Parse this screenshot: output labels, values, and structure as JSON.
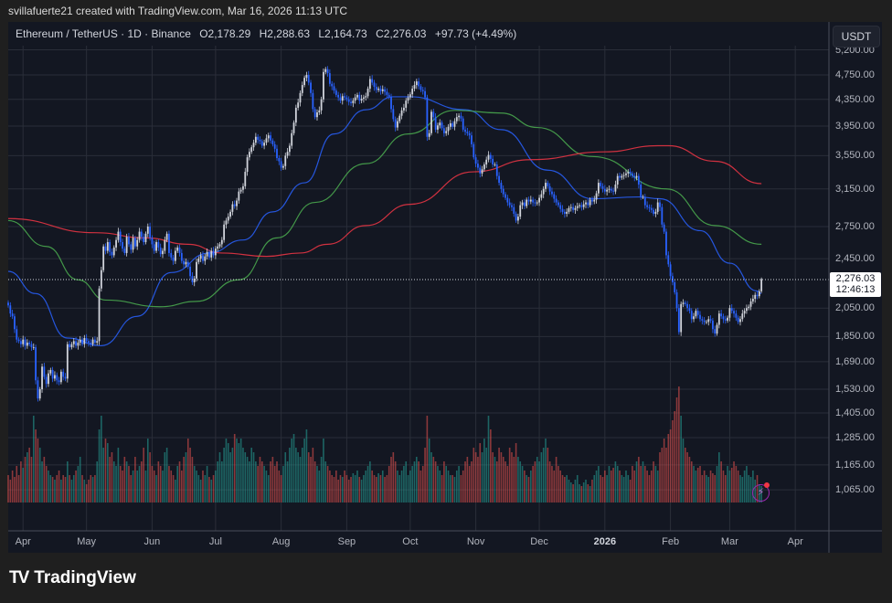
{
  "credit": "svillafuerte21 created with TradingView.com, Mar 16, 2026 11:13 UTC",
  "legend": {
    "symbol": "Ethereum / TetherUS · 1D · Binance",
    "open": "O2,178.29",
    "high": "H2,288.63",
    "low": "L2,164.73",
    "close": "C2,276.03",
    "change": "+97.73 (+4.49%)"
  },
  "currency_button": "USDT",
  "last_price": {
    "price": "2,276.03",
    "countdown": "12:46:13"
  },
  "logo": {
    "text": "TradingView",
    "mark": "TV"
  },
  "icons": {
    "alert": "lightning-bolt-icon"
  },
  "colors": {
    "background": "#131722",
    "up": "#d1d4dc",
    "down": "#2962ff",
    "volume_up": "#26a69a",
    "volume_down": "#ef5350",
    "ma_blue": "#2962ff",
    "ma_green": "#4caf50",
    "ma_red": "#f23645"
  },
  "chart_data": {
    "type": "candlestick",
    "title": "Ethereum / TetherUS · 1D · Binance",
    "y_scale": "log",
    "ylim": [
      1000,
      5300
    ],
    "grid": true,
    "y_ticks": [
      {
        "value": 5200,
        "label": "5,200.00"
      },
      {
        "value": 4750,
        "label": "4,750.00"
      },
      {
        "value": 4350,
        "label": "4,350.00"
      },
      {
        "value": 3950,
        "label": "3,950.00"
      },
      {
        "value": 3550,
        "label": "3,550.00"
      },
      {
        "value": 3150,
        "label": "3,150.00"
      },
      {
        "value": 2750,
        "label": "2,750.00"
      },
      {
        "value": 2450,
        "label": "2,450.00"
      },
      {
        "value": 2050,
        "label": "2,050.00"
      },
      {
        "value": 1850,
        "label": "1,850.00"
      },
      {
        "value": 1690,
        "label": "1,690.00"
      },
      {
        "value": 1530,
        "label": "1,530.00"
      },
      {
        "value": 1405,
        "label": "1,405.00"
      },
      {
        "value": 1285,
        "label": "1,285.00"
      },
      {
        "value": 1165,
        "label": "1,165.00"
      },
      {
        "value": 1065,
        "label": "1,065.00"
      }
    ],
    "x_ticks": [
      {
        "label": "Apr",
        "date": "2025-04-01"
      },
      {
        "label": "May",
        "date": "2025-05-01"
      },
      {
        "label": "Jun",
        "date": "2025-06-01"
      },
      {
        "label": "Jul",
        "date": "2025-07-01"
      },
      {
        "label": "Aug",
        "date": "2025-08-01"
      },
      {
        "label": "Sep",
        "date": "2025-09-01"
      },
      {
        "label": "Oct",
        "date": "2025-10-01"
      },
      {
        "label": "Nov",
        "date": "2025-11-01"
      },
      {
        "label": "Dec",
        "date": "2025-12-01"
      },
      {
        "label": "2026",
        "date": "2026-01-01"
      },
      {
        "label": "Feb",
        "date": "2026-02-01"
      },
      {
        "label": "Mar",
        "date": "2026-03-01"
      },
      {
        "label": "Apr",
        "date": "2026-04-01"
      }
    ],
    "first_candle_date": "2025-03-25",
    "last_candle": {
      "open": 2178.29,
      "high": 2288.63,
      "low": 2164.73,
      "close": 2276.03
    },
    "closes": [
      2070,
      2010,
      1990,
      1900,
      1830,
      1820,
      1800,
      1830,
      1790,
      1810,
      1800,
      1780,
      1780,
      1580,
      1480,
      1530,
      1660,
      1600,
      1560,
      1620,
      1640,
      1590,
      1610,
      1580,
      1570,
      1630,
      1600,
      1590,
      1800,
      1780,
      1800,
      1820,
      1790,
      1810,
      1830,
      1800,
      1840,
      1820,
      1810,
      1800,
      1830,
      1810,
      1820,
      2200,
      2350,
      2560,
      2520,
      2600,
      2510,
      2480,
      2550,
      2620,
      2700,
      2600,
      2540,
      2500,
      2650,
      2580,
      2530,
      2640,
      2560,
      2620,
      2700,
      2650,
      2600,
      2680,
      2750,
      2640,
      2580,
      2520,
      2600,
      2550,
      2490,
      2520,
      2620,
      2680,
      2500,
      2460,
      2430,
      2520,
      2550,
      2500,
      2430,
      2400,
      2420,
      2380,
      2300,
      2250,
      2280,
      2420,
      2450,
      2480,
      2430,
      2470,
      2510,
      2460,
      2520,
      2480,
      2540,
      2560,
      2580,
      2620,
      2770,
      2810,
      2850,
      2900,
      2980,
      2960,
      3020,
      3120,
      3140,
      3180,
      3350,
      3530,
      3600,
      3660,
      3720,
      3800,
      3760,
      3740,
      3680,
      3720,
      3780,
      3820,
      3750,
      3700,
      3640,
      3520,
      3480,
      3400,
      3420,
      3550,
      3600,
      3680,
      3850,
      4000,
      4220,
      4300,
      4450,
      4580,
      4700,
      4750,
      4620,
      4450,
      4200,
      4080,
      4150,
      4180,
      4350,
      4800,
      4850,
      4780,
      4600,
      4560,
      4490,
      4420,
      4380,
      4330,
      4400,
      4380,
      4350,
      4310,
      4290,
      4330,
      4380,
      4420,
      4330,
      4360,
      4380,
      4400,
      4520,
      4680,
      4620,
      4550,
      4500,
      4520,
      4480,
      4510,
      4470,
      4420,
      4390,
      4200,
      4050,
      3930,
      4020,
      4100,
      4180,
      4220,
      4330,
      4380,
      4430,
      4520,
      4580,
      4640,
      4560,
      4500,
      4480,
      4380,
      3800,
      3850,
      4160,
      4080,
      3900,
      3960,
      4000,
      3920,
      3850,
      3880,
      3940,
      3990,
      3940,
      4020,
      4080,
      4100,
      4060,
      3900,
      3870,
      3850,
      3820,
      3700,
      3530,
      3450,
      3400,
      3330,
      3380,
      3440,
      3500,
      3560,
      3510,
      3440,
      3440,
      3300,
      3220,
      3150,
      3090,
      3050,
      3000,
      2970,
      2950,
      2880,
      2810,
      2850,
      2970,
      3000,
      2960,
      3030,
      3010,
      3030,
      3000,
      2990,
      3000,
      3050,
      3090,
      3150,
      3220,
      3180,
      3120,
      3090,
      3040,
      3000,
      2970,
      2930,
      2900,
      2880,
      2900,
      2940,
      2950,
      2920,
      2940,
      2960,
      2970,
      2950,
      2980,
      3000,
      2970,
      3030,
      3010,
      3030,
      3100,
      3220,
      3180,
      3150,
      3120,
      3140,
      3150,
      3130,
      3120,
      3200,
      3300,
      3280,
      3300,
      3310,
      3330,
      3350,
      3330,
      3300,
      3280,
      3300,
      3200,
      3060,
      3060,
      2970,
      2950,
      2940,
      2920,
      2880,
      2900,
      3000,
      2950,
      2770,
      2700,
      2480,
      2400,
      2300,
      2250,
      2170,
      2050,
      1880,
      2080,
      2090,
      2080,
      2050,
      2030,
      1970,
      1990,
      2030,
      2000,
      1970,
      1960,
      1950,
      1950,
      1970,
      1960,
      1900,
      1870,
      1930,
      2010,
      1990,
      1970,
      1960,
      1980,
      2050,
      2030,
      2010,
      1980,
      1950,
      1970,
      2010,
      2030,
      2050,
      2060,
      2100,
      2120,
      2150,
      2140,
      2178.29,
      2276.03
    ],
    "volume_relative": [
      30,
      25,
      35,
      28,
      40,
      30,
      45,
      38,
      50,
      55,
      60,
      50,
      95,
      80,
      70,
      60,
      45,
      50,
      40,
      35,
      30,
      28,
      25,
      30,
      35,
      25,
      30,
      28,
      45,
      30,
      25,
      30,
      35,
      40,
      50,
      30,
      25,
      20,
      25,
      30,
      28,
      30,
      45,
      80,
      95,
      60,
      70,
      65,
      50,
      55,
      45,
      40,
      60,
      40,
      35,
      50,
      45,
      40,
      30,
      35,
      50,
      35,
      40,
      45,
      60,
      35,
      70,
      55,
      40,
      35,
      30,
      45,
      40,
      35,
      55,
      60,
      40,
      35,
      30,
      25,
      40,
      45,
      35,
      50,
      55,
      70,
      60,
      50,
      40,
      35,
      30,
      25,
      35,
      30,
      40,
      28,
      25,
      30,
      35,
      45,
      55,
      45,
      60,
      70,
      65,
      55,
      60,
      75,
      70,
      65,
      70,
      60,
      55,
      50,
      45,
      60,
      55,
      45,
      40,
      50,
      45,
      40,
      35,
      30,
      45,
      50,
      40,
      45,
      35,
      30,
      40,
      55,
      45,
      60,
      70,
      75,
      60,
      55,
      50,
      60,
      70,
      80,
      55,
      50,
      60,
      45,
      40,
      35,
      50,
      70,
      45,
      40,
      35,
      30,
      28,
      35,
      25,
      30,
      28,
      35,
      30,
      25,
      28,
      32,
      30,
      35,
      28,
      25,
      30,
      35,
      40,
      45,
      35,
      30,
      28,
      32,
      30,
      35,
      28,
      30,
      40,
      50,
      55,
      45,
      35,
      30,
      35,
      40,
      45,
      30,
      35,
      40,
      45,
      50,
      45,
      35,
      40,
      60,
      95,
      70,
      55,
      50,
      45,
      40,
      35,
      30,
      45,
      40,
      35,
      30,
      30,
      28,
      35,
      40,
      30,
      35,
      45,
      50,
      40,
      45,
      60,
      55,
      50,
      65,
      55,
      70,
      60,
      95,
      80,
      55,
      50,
      45,
      60,
      55,
      50,
      45,
      40,
      60,
      55,
      50,
      65,
      50,
      45,
      40,
      35,
      30,
      28,
      35,
      40,
      45,
      50,
      45,
      55,
      60,
      70,
      60,
      45,
      40,
      35,
      50,
      40,
      35,
      30,
      28,
      30,
      25,
      22,
      20,
      25,
      30,
      20,
      18,
      22,
      25,
      20,
      18,
      25,
      30,
      35,
      40,
      30,
      28,
      35,
      30,
      40,
      35,
      38,
      45,
      40,
      35,
      30,
      28,
      35,
      30,
      25,
      40,
      35,
      45,
      50,
      40,
      45,
      40,
      35,
      30,
      35,
      45,
      40,
      35,
      55,
      60,
      70,
      60,
      75,
      80,
      90,
      100,
      115,
      127,
      95,
      70,
      60,
      55,
      50,
      45,
      40,
      35,
      38,
      40,
      30,
      35,
      30,
      28,
      35,
      32,
      30,
      40,
      55,
      45,
      35,
      30,
      40,
      35,
      38,
      45,
      40,
      35,
      30,
      28,
      35,
      40,
      30,
      28,
      35,
      25,
      30,
      20,
      18
    ],
    "moving_averages": [
      {
        "color": "#2962ff",
        "points": [
          [
            "2025-03-25",
            2340
          ],
          [
            "2025-04-07",
            2160
          ],
          [
            "2025-04-22",
            1840
          ],
          [
            "2025-05-08",
            1790
          ],
          [
            "2025-05-25",
            1990
          ],
          [
            "2025-06-10",
            2330
          ],
          [
            "2025-06-28",
            2500
          ],
          [
            "2025-07-14",
            2620
          ],
          [
            "2025-07-28",
            2900
          ],
          [
            "2025-08-12",
            3220
          ],
          [
            "2025-08-26",
            3840
          ],
          [
            "2025-09-10",
            4190
          ],
          [
            "2025-09-23",
            4390
          ],
          [
            "2025-10-01",
            4390
          ],
          [
            "2025-10-27",
            4190
          ],
          [
            "2025-11-13",
            3900
          ],
          [
            "2025-12-05",
            3370
          ],
          [
            "2025-12-26",
            3040
          ],
          [
            "2026-01-17",
            3060
          ],
          [
            "2026-01-27",
            3040
          ],
          [
            "2026-02-15",
            2710
          ],
          [
            "2026-03-01",
            2410
          ],
          [
            "2026-03-14",
            2180
          ],
          [
            "2026-03-16",
            2160
          ]
        ]
      },
      {
        "color": "#4caf50",
        "points": [
          [
            "2025-03-25",
            2810
          ],
          [
            "2025-04-12",
            2560
          ],
          [
            "2025-04-27",
            2270
          ],
          [
            "2025-05-10",
            2110
          ],
          [
            "2025-06-05",
            2060
          ],
          [
            "2025-06-22",
            2100
          ],
          [
            "2025-07-12",
            2270
          ],
          [
            "2025-07-30",
            2640
          ],
          [
            "2025-08-17",
            3000
          ],
          [
            "2025-09-10",
            3450
          ],
          [
            "2025-09-30",
            3840
          ],
          [
            "2025-10-22",
            4180
          ],
          [
            "2025-11-13",
            4140
          ],
          [
            "2025-11-30",
            3930
          ],
          [
            "2025-12-26",
            3540
          ],
          [
            "2026-01-30",
            3150
          ],
          [
            "2026-02-22",
            2760
          ],
          [
            "2026-03-16",
            2580
          ]
        ]
      },
      {
        "color": "#f23645",
        "points": [
          [
            "2025-03-25",
            2830
          ],
          [
            "2025-05-05",
            2690
          ],
          [
            "2025-05-29",
            2640
          ],
          [
            "2025-06-18",
            2580
          ],
          [
            "2025-07-04",
            2500
          ],
          [
            "2025-07-25",
            2470
          ],
          [
            "2025-08-10",
            2500
          ],
          [
            "2025-08-23",
            2580
          ],
          [
            "2025-09-10",
            2760
          ],
          [
            "2025-10-01",
            2980
          ],
          [
            "2025-10-31",
            3350
          ],
          [
            "2025-11-27",
            3500
          ],
          [
            "2026-01-01",
            3600
          ],
          [
            "2026-01-26",
            3680
          ],
          [
            "2026-01-31",
            3680
          ],
          [
            "2026-02-22",
            3480
          ],
          [
            "2026-03-16",
            3210
          ]
        ]
      }
    ]
  }
}
